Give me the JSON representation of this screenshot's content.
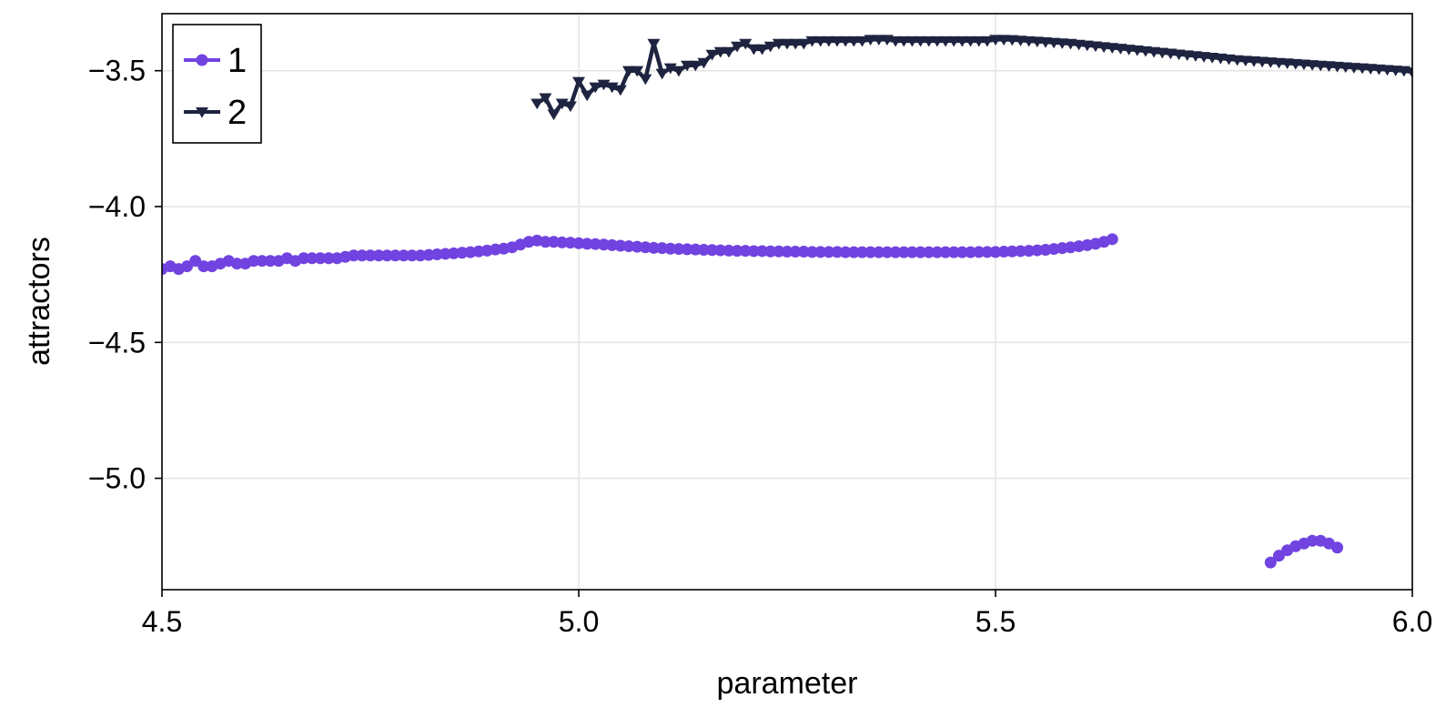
{
  "chart_data": {
    "type": "line",
    "title": "",
    "xlabel": "parameter",
    "ylabel": "attractors",
    "xlim": [
      4.5,
      6.0
    ],
    "ylim": [
      -5.41,
      -3.29
    ],
    "xticks": [
      4.5,
      5.0,
      5.5,
      6.0
    ],
    "xtick_labels": [
      "4.5",
      "5.0",
      "5.5",
      "6.0"
    ],
    "yticks": [
      -3.5,
      -4.0,
      -4.5,
      -5.0
    ],
    "ytick_labels": [
      "−3.5",
      "−4.0",
      "−4.5",
      "−5.0"
    ],
    "grid": true,
    "legend_position": "top-left",
    "series": [
      {
        "name": "1",
        "color": "#7143e0",
        "marker": "circle",
        "segments": [
          {
            "x": [
              4.5,
              4.51,
              4.52,
              4.53,
              4.54,
              4.55,
              4.56,
              4.57,
              4.58,
              4.59,
              4.6,
              4.61,
              4.62,
              4.63,
              4.64,
              4.65,
              4.66,
              4.67,
              4.68,
              4.69,
              4.7,
              4.71,
              4.72,
              4.73,
              4.74,
              4.75,
              4.76,
              4.77,
              4.78,
              4.79,
              4.8,
              4.81,
              4.82,
              4.83,
              4.84,
              4.85,
              4.86,
              4.87,
              4.88,
              4.89,
              4.9,
              4.91,
              4.92,
              4.93,
              4.94,
              4.95,
              4.96,
              4.97,
              4.98,
              4.99,
              5.0,
              5.01,
              5.02,
              5.03,
              5.04,
              5.05,
              5.06,
              5.07,
              5.08,
              5.09,
              5.1,
              5.11,
              5.12,
              5.13,
              5.14,
              5.15,
              5.16,
              5.17,
              5.18,
              5.19,
              5.2,
              5.21,
              5.22,
              5.23,
              5.24,
              5.25,
              5.26,
              5.27,
              5.28,
              5.29,
              5.3,
              5.31,
              5.32,
              5.33,
              5.34,
              5.35,
              5.36,
              5.37,
              5.38,
              5.39,
              5.4,
              5.41,
              5.42,
              5.43,
              5.44,
              5.45,
              5.46,
              5.47,
              5.48,
              5.49,
              5.5,
              5.51,
              5.52,
              5.53,
              5.54,
              5.55,
              5.56,
              5.57,
              5.58,
              5.59,
              5.6,
              5.61,
              5.62,
              5.63,
              5.64
            ],
            "y": [
              -4.23,
              -4.22,
              -4.23,
              -4.22,
              -4.2,
              -4.22,
              -4.22,
              -4.21,
              -4.2,
              -4.21,
              -4.21,
              -4.2,
              -4.2,
              -4.2,
              -4.2,
              -4.19,
              -4.2,
              -4.19,
              -4.19,
              -4.19,
              -4.19,
              -4.19,
              -4.185,
              -4.18,
              -4.18,
              -4.18,
              -4.18,
              -4.18,
              -4.18,
              -4.18,
              -4.18,
              -4.18,
              -4.178,
              -4.176,
              -4.174,
              -4.172,
              -4.17,
              -4.168,
              -4.165,
              -4.162,
              -4.158,
              -4.155,
              -4.15,
              -4.14,
              -4.13,
              -4.125,
              -4.13,
              -4.13,
              -4.132,
              -4.133,
              -4.135,
              -4.137,
              -4.138,
              -4.14,
              -4.142,
              -4.144,
              -4.146,
              -4.148,
              -4.15,
              -4.152,
              -4.153,
              -4.155,
              -4.156,
              -4.157,
              -4.158,
              -4.159,
              -4.16,
              -4.161,
              -4.162,
              -4.163,
              -4.163,
              -4.164,
              -4.164,
              -4.165,
              -4.165,
              -4.166,
              -4.166,
              -4.166,
              -4.167,
              -4.167,
              -4.167,
              -4.167,
              -4.168,
              -4.168,
              -4.168,
              -4.168,
              -4.168,
              -4.168,
              -4.168,
              -4.168,
              -4.168,
              -4.168,
              -4.168,
              -4.168,
              -4.168,
              -4.168,
              -4.168,
              -4.168,
              -4.167,
              -4.167,
              -4.167,
              -4.166,
              -4.165,
              -4.164,
              -4.163,
              -4.161,
              -4.159,
              -4.156,
              -4.153,
              -4.15,
              -4.146,
              -4.142,
              -4.137,
              -4.13,
              -4.12
            ]
          },
          {
            "x": [
              5.83,
              5.84,
              5.85,
              5.86,
              5.87,
              5.88,
              5.89,
              5.9,
              5.91
            ],
            "y": [
              -5.31,
              -5.285,
              -5.265,
              -5.25,
              -5.24,
              -5.23,
              -5.23,
              -5.24,
              -5.255
            ]
          }
        ]
      },
      {
        "name": "2",
        "color": "#1e2440",
        "marker": "triangle-down",
        "segments": [
          {
            "x": [
              4.95,
              4.96,
              4.97,
              4.98,
              4.99,
              5.0,
              5.01,
              5.02,
              5.03,
              5.04,
              5.05,
              5.06,
              5.07,
              5.08,
              5.09,
              5.1,
              5.11,
              5.12,
              5.13,
              5.14,
              5.15,
              5.16,
              5.17,
              5.18,
              5.19,
              5.2,
              5.21,
              5.22,
              5.23,
              5.24,
              5.25,
              5.26,
              5.27,
              5.28,
              5.29,
              5.3,
              5.31,
              5.32,
              5.33,
              5.34,
              5.35,
              5.36,
              5.37,
              5.38,
              5.39,
              5.4,
              5.41,
              5.42,
              5.43,
              5.44,
              5.45,
              5.46,
              5.47,
              5.48,
              5.49,
              5.5,
              5.51,
              5.52,
              5.53,
              5.54,
              5.55,
              5.56,
              5.57,
              5.58,
              5.59,
              5.6,
              5.61,
              5.62,
              5.63,
              5.64,
              5.65,
              5.66,
              5.67,
              5.68,
              5.69,
              5.7,
              5.71,
              5.72,
              5.73,
              5.74,
              5.75,
              5.76,
              5.77,
              5.78,
              5.79,
              5.8,
              5.81,
              5.82,
              5.83,
              5.84,
              5.85,
              5.86,
              5.87,
              5.88,
              5.89,
              5.9,
              5.91,
              5.92,
              5.93,
              5.94,
              5.95,
              5.96,
              5.97,
              5.98,
              5.99,
              6.0
            ],
            "y": [
              -3.62,
              -3.6,
              -3.66,
              -3.62,
              -3.63,
              -3.54,
              -3.59,
              -3.56,
              -3.55,
              -3.56,
              -3.57,
              -3.5,
              -3.5,
              -3.53,
              -3.4,
              -3.51,
              -3.49,
              -3.5,
              -3.48,
              -3.48,
              -3.47,
              -3.44,
              -3.43,
              -3.43,
              -3.41,
              -3.4,
              -3.42,
              -3.42,
              -3.41,
              -3.4,
              -3.4,
              -3.4,
              -3.4,
              -3.39,
              -3.39,
              -3.39,
              -3.39,
              -3.39,
              -3.39,
              -3.39,
              -3.385,
              -3.385,
              -3.385,
              -3.39,
              -3.39,
              -3.39,
              -3.39,
              -3.39,
              -3.39,
              -3.39,
              -3.39,
              -3.39,
              -3.39,
              -3.39,
              -3.39,
              -3.385,
              -3.385,
              -3.386,
              -3.388,
              -3.39,
              -3.392,
              -3.394,
              -3.396,
              -3.398,
              -3.4,
              -3.403,
              -3.406,
              -3.409,
              -3.412,
              -3.415,
              -3.418,
              -3.421,
              -3.424,
              -3.427,
              -3.43,
              -3.433,
              -3.436,
              -3.439,
              -3.442,
              -3.445,
              -3.448,
              -3.451,
              -3.454,
              -3.457,
              -3.46,
              -3.462,
              -3.464,
              -3.466,
              -3.468,
              -3.47,
              -3.472,
              -3.474,
              -3.476,
              -3.478,
              -3.48,
              -3.482,
              -3.484,
              -3.486,
              -3.488,
              -3.49,
              -3.492,
              -3.494,
              -3.496,
              -3.498,
              -3.5,
              -3.505
            ]
          }
        ]
      }
    ]
  }
}
